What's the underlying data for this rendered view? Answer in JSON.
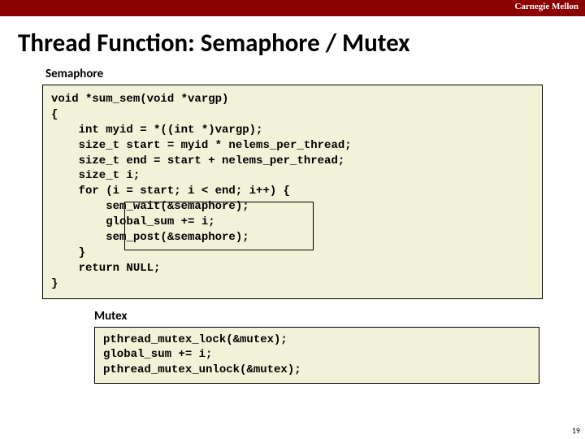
{
  "header": {
    "institution": "Carnegie Mellon"
  },
  "title": "Thread Function: Semaphore / Mutex",
  "semaphore": {
    "label": "Semaphore",
    "code": {
      "l1": "void *sum_sem(void *vargp)",
      "l2": "{",
      "l3": "    int myid = *((int *)vargp);",
      "l4": "    size_t start = myid * nelems_per_thread;",
      "l5": "    size_t end = start + nelems_per_thread;",
      "l6": "    size_t i;",
      "l7": "",
      "l8": "    for (i = start; i < end; i++) {",
      "l9": "        sem_wait(&semaphore);",
      "l10": "        global_sum += i;",
      "l11": "        sem_post(&semaphore);",
      "l12": "    }",
      "l13": "    return NULL;",
      "l14": "}"
    }
  },
  "mutex": {
    "label": "Mutex",
    "code": {
      "l1": "pthread_mutex_lock(&mutex);",
      "l2": "global_sum += i;",
      "l3": "pthread_mutex_unlock(&mutex);"
    }
  },
  "page_number": "19",
  "colors": {
    "header_bg": "#8b0000",
    "code_bg": "#f2f2d9",
    "border": "#000000"
  }
}
